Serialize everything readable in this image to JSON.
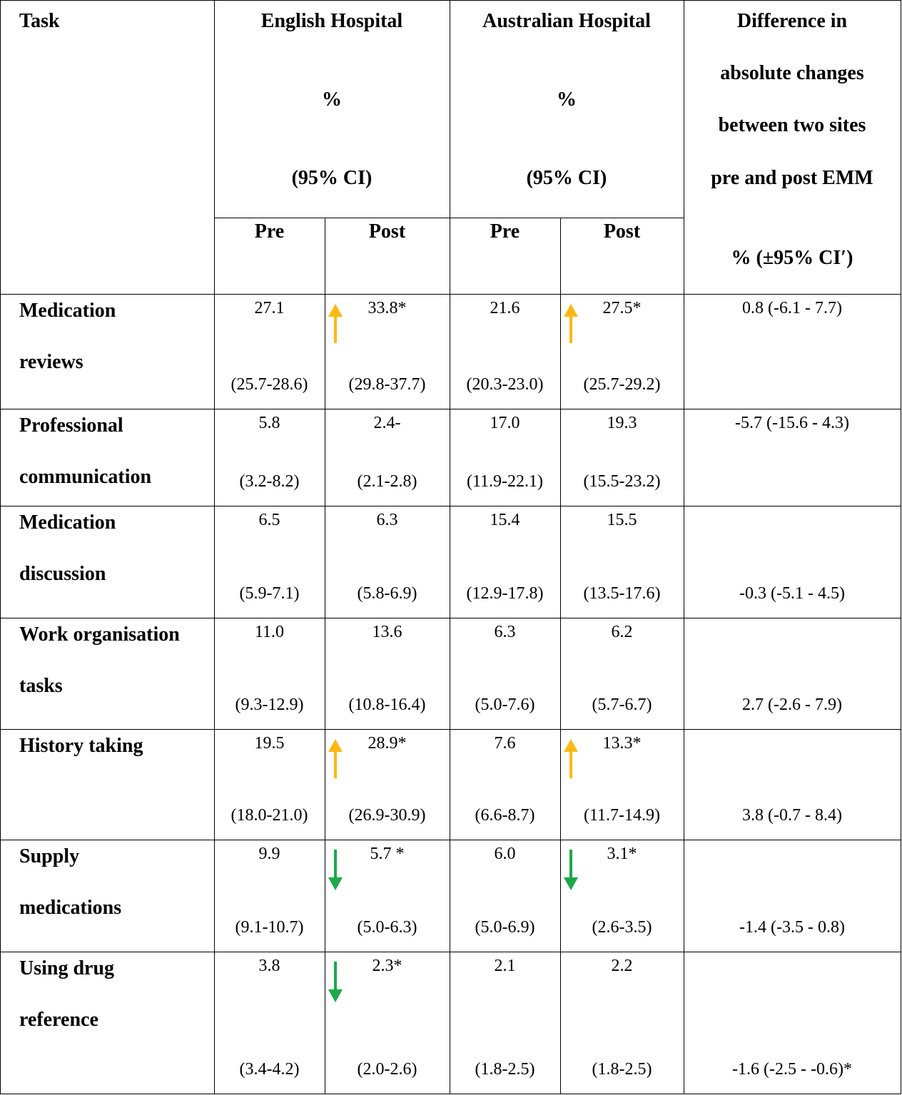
{
  "colors": {
    "up_arrow": "#FDB913",
    "down_arrow": "#1EA84A"
  },
  "header": {
    "task": "Task",
    "english": [
      "English Hospital",
      "%",
      "(95% CI)"
    ],
    "australian": [
      "Australian Hospital",
      "%",
      "(95% CI)"
    ],
    "difference": [
      "Difference in",
      "absolute changes",
      "between two sites",
      "pre and post EMM",
      "% (±95% CI′)"
    ],
    "pre": "Pre",
    "post": "Post"
  },
  "rows": [
    {
      "task": [
        "Medication",
        "reviews"
      ],
      "eng_pre": [
        "27.1",
        "(25.7-28.6)"
      ],
      "eng_post": [
        "33.8*",
        "(29.8-37.7)"
      ],
      "aus_pre": [
        "21.6",
        "(20.3-23.0)"
      ],
      "aus_post": [
        "27.5*",
        "(25.7-29.2)"
      ],
      "diff": "0.8 (-6.1 - 7.7)",
      "diff_pos": "top",
      "eng_arrow": "up",
      "aus_arrow": "up"
    },
    {
      "task": [
        "Professional",
        "communication"
      ],
      "eng_pre": [
        "5.8",
        "(3.2-8.2)"
      ],
      "eng_post": [
        "2.4-",
        "(2.1-2.8)"
      ],
      "aus_pre": [
        "17.0",
        "(11.9-22.1)"
      ],
      "aus_post": [
        "19.3",
        "(15.5-23.2)"
      ],
      "diff": "-5.7 (-15.6 - 4.3)",
      "diff_pos": "top",
      "eng_arrow": "none",
      "aus_arrow": "none"
    },
    {
      "task": [
        "Medication",
        "discussion"
      ],
      "eng_pre": [
        "6.5",
        "(5.9-7.1)"
      ],
      "eng_post": [
        "6.3",
        "(5.8-6.9)"
      ],
      "aus_pre": [
        "15.4",
        "(12.9-17.8)"
      ],
      "aus_post": [
        "15.5",
        "(13.5-17.6)"
      ],
      "diff": "-0.3 (-5.1 - 4.5)",
      "diff_pos": "bottom",
      "eng_arrow": "none",
      "aus_arrow": "none"
    },
    {
      "task": [
        "Work organisation",
        "tasks"
      ],
      "eng_pre": [
        "11.0",
        "(9.3-12.9)"
      ],
      "eng_post": [
        "13.6",
        "(10.8-16.4)"
      ],
      "aus_pre": [
        "6.3",
        "(5.0-7.6)"
      ],
      "aus_post": [
        "6.2",
        "(5.7-6.7)"
      ],
      "diff": "2.7 (-2.6 - 7.9)",
      "diff_pos": "bottom",
      "eng_arrow": "none",
      "aus_arrow": "none"
    },
    {
      "task": [
        "History taking",
        ""
      ],
      "eng_pre": [
        "19.5",
        "(18.0-21.0)"
      ],
      "eng_post": [
        "28.9*",
        "(26.9-30.9)"
      ],
      "aus_pre": [
        "7.6",
        "(6.6-8.7)"
      ],
      "aus_post": [
        "13.3*",
        "(11.7-14.9)"
      ],
      "diff": "3.8 (-0.7 - 8.4)",
      "diff_pos": "bottom",
      "eng_arrow": "up",
      "aus_arrow": "up"
    },
    {
      "task": [
        "Supply",
        "medications"
      ],
      "eng_pre": [
        "9.9",
        "(9.1-10.7)"
      ],
      "eng_post": [
        "5.7 *",
        "(5.0-6.3)"
      ],
      "aus_pre": [
        "6.0",
        "(5.0-6.9)"
      ],
      "aus_post": [
        "3.1*",
        "(2.6-3.5)"
      ],
      "diff": "-1.4 (-3.5 - 0.8)",
      "diff_pos": "bottom",
      "eng_arrow": "down",
      "aus_arrow": "down"
    },
    {
      "task": [
        "Using drug",
        "reference"
      ],
      "eng_pre": [
        "3.8",
        "(3.4-4.2)"
      ],
      "eng_post": [
        "2.3*",
        "(2.0-2.6)"
      ],
      "aus_pre": [
        "2.1",
        "(1.8-2.5)"
      ],
      "aus_post": [
        "2.2",
        "(1.8-2.5)"
      ],
      "diff": "-1.6 (-2.5 - -0.6)*",
      "diff_pos": "bottom",
      "eng_arrow": "down",
      "aus_arrow": "none"
    }
  ]
}
